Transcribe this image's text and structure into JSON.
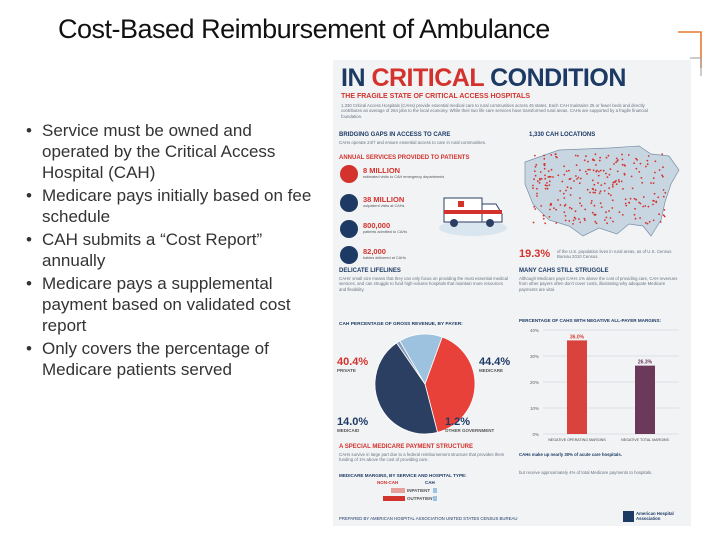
{
  "slide": {
    "title": "Cost-Based Reimbursement of Ambulance",
    "bullets": [
      "Service must be owned and operated by the Critical Access Hospital (CAH)",
      "Medicare pays initially based on fee schedule",
      "CAH submits a “Cost Report” annually",
      "Medicare pays a supplemental payment based on validated cost report",
      "Only covers the percentage of Medicare patients served"
    ]
  },
  "infographic": {
    "title_in": "IN",
    "title_critical": "CRITICAL",
    "title_condition": "CONDITION",
    "subtitle": "THE FRAGILE STATE OF CRITICAL ACCESS HOSPITALS",
    "intro_text": "1,330 Critical Access Hospitals (CAHs) provide essential medical care to rural communities across 45 states. Each CAH maintains 25 or fewer beds and directly contributes an average of 264 jobs to the local economy. While their two life care services have transformed rural areas, CAHs are supported by a fragile financial foundation.",
    "bridging": {
      "heading": "BRIDGING GAPS IN ACCESS TO CARE",
      "text": "CAHs operate 24/7 and ensure essential access to care in rural communities.",
      "services_heading": "ANNUAL SERVICES PROVIDED TO PATIENTS",
      "stats": [
        {
          "value": "8 MILLION",
          "label": "estimated visits to CAH emergency departments"
        },
        {
          "value": "38 MILLION",
          "label": "outpatient visits at CAHs"
        },
        {
          "value": "800,000",
          "label": "patients admitted to CAHs"
        },
        {
          "value": "82,000",
          "label": "babies delivered at CAHs"
        }
      ]
    },
    "map": {
      "heading": "1,330 CAH LOCATIONS",
      "pct": "19.3%",
      "pct_text": "of the U.S. population lives in rural areas, as of U.S. Census Bureau 2010 Census."
    },
    "lifelines": {
      "heading": "DELICATE LIFELINES",
      "text": "CAHs' small size means that they can only focus on providing the most essential medical services, and can struggle to fund high-volume hospitals that maintain more resources and flexibility.",
      "revenue_heading": "CAH PERCENTAGE OF GROSS REVENUE, BY PAYER:",
      "slices": [
        {
          "name": "PRIVATE",
          "pct": "40.4%",
          "value": 40.4,
          "color": "#e8413a"
        },
        {
          "name": "MEDICARE",
          "pct": "44.4%",
          "value": 44.4,
          "color": "#2b3f63"
        },
        {
          "name": "OTHER GOVERNMENT",
          "pct": "1.2%",
          "value": 1.2,
          "color": "#8aa0b8"
        },
        {
          "name": "MEDICAID",
          "pct": "14.0%",
          "value": 14.0,
          "color": "#9cc2e0"
        }
      ]
    },
    "struggle": {
      "heading": "MANY CAHS STILL STRUGGLE",
      "text": "Although Medicare pays CAHs 1% above the cost of providing care, CAH revenues from other payers often don't cover costs, illustrating why adequate Medicare payments are vital.",
      "chart_heading": "PERCENTAGE OF CAHS WITH NEGATIVE ALL-PAYER MARGINS:",
      "note": "CAHs make up nearly 30% of acute care hospitals.",
      "note2": "but receive approximately 4% of total Medicare payments to hospitals."
    },
    "special": {
      "heading": "A SPECIAL MEDICARE PAYMENT STRUCTURE",
      "text": "CAHs survive in large part due to a federal reimbursement structure that provides them funding of 1% above the cost of providing care.",
      "margin_heading": "MEDICARE MARGINS, BY SERVICE AND HOSPITAL TYPE:",
      "col_non_cah": "NON-CAH",
      "col_cah": "CAH",
      "rows": [
        "INPATIENT",
        "OUTPATIENT"
      ]
    },
    "footer": "PREPARED BY AMERICAN HOSPITAL ASSOCIATION UNITED STATES CENSUS BUREAU",
    "logo_text": "American Hospital Association",
    "colors": {
      "navy": "#1d3a64",
      "red": "#d4322c",
      "bar_red": "#d9433b",
      "bar_purple": "#6b3a5a"
    }
  },
  "chart_data": {
    "type": "bar",
    "title": "PERCENTAGE OF CAHS WITH NEGATIVE ALL-PAYER MARGINS:",
    "categories": [
      "NEGATIVE OPERATING MARGINS",
      "NEGATIVE TOTAL MARGINS"
    ],
    "values": [
      36.0,
      26.3
    ],
    "value_labels": [
      "36.0%",
      "26.3%"
    ],
    "yticks": [
      "40%",
      "30%",
      "20%",
      "10%",
      "0%"
    ],
    "ylim": [
      0,
      40
    ]
  }
}
